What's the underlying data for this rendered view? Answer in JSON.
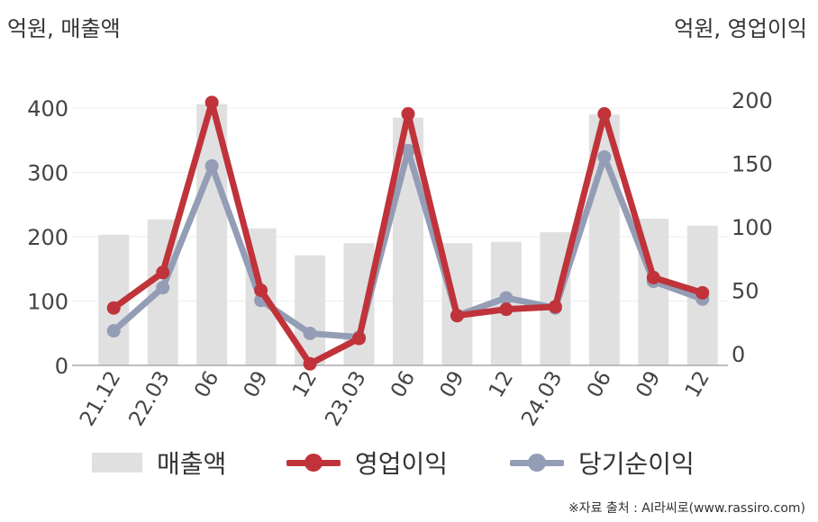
{
  "units": {
    "left": "억원, 매출액",
    "right": "억원, 영업이익"
  },
  "source": "※자료 출처 : AI라씨로(www.rassiro.com)",
  "colors": {
    "revenue": "#e0e0e0",
    "operating_profit": "#c0333a",
    "net_income": "#939db5",
    "axis": "#aaaaaa",
    "grid": "#eeeeee"
  },
  "chart_data": {
    "type": "bar",
    "categories": [
      "21.12",
      "22.03",
      "06",
      "09",
      "12",
      "23.03",
      "06",
      "09",
      "12",
      "24.03",
      "06",
      "09",
      "12"
    ],
    "y_left": {
      "ticks": [
        0,
        100,
        200,
        300,
        400
      ],
      "lim": [
        0,
        450
      ]
    },
    "y_right": {
      "ticks": [
        0,
        50,
        100,
        150,
        200
      ],
      "lim": [
        -10,
        215
      ]
    },
    "series": [
      {
        "name": "매출액",
        "kind": "bar",
        "axis": "left",
        "values": [
          203,
          227,
          406,
          213,
          171,
          190,
          385,
          190,
          192,
          207,
          390,
          228,
          217
        ]
      },
      {
        "name": "영업이익",
        "kind": "line",
        "axis": "right",
        "values": [
          36,
          64,
          198,
          50,
          -8,
          12,
          189,
          30,
          35,
          37,
          189,
          60,
          48
        ]
      },
      {
        "name": "당기순이익",
        "kind": "line",
        "axis": "right",
        "values": [
          18,
          52,
          148,
          42,
          16,
          13,
          160,
          30,
          44,
          36,
          155,
          57,
          43
        ]
      }
    ]
  }
}
